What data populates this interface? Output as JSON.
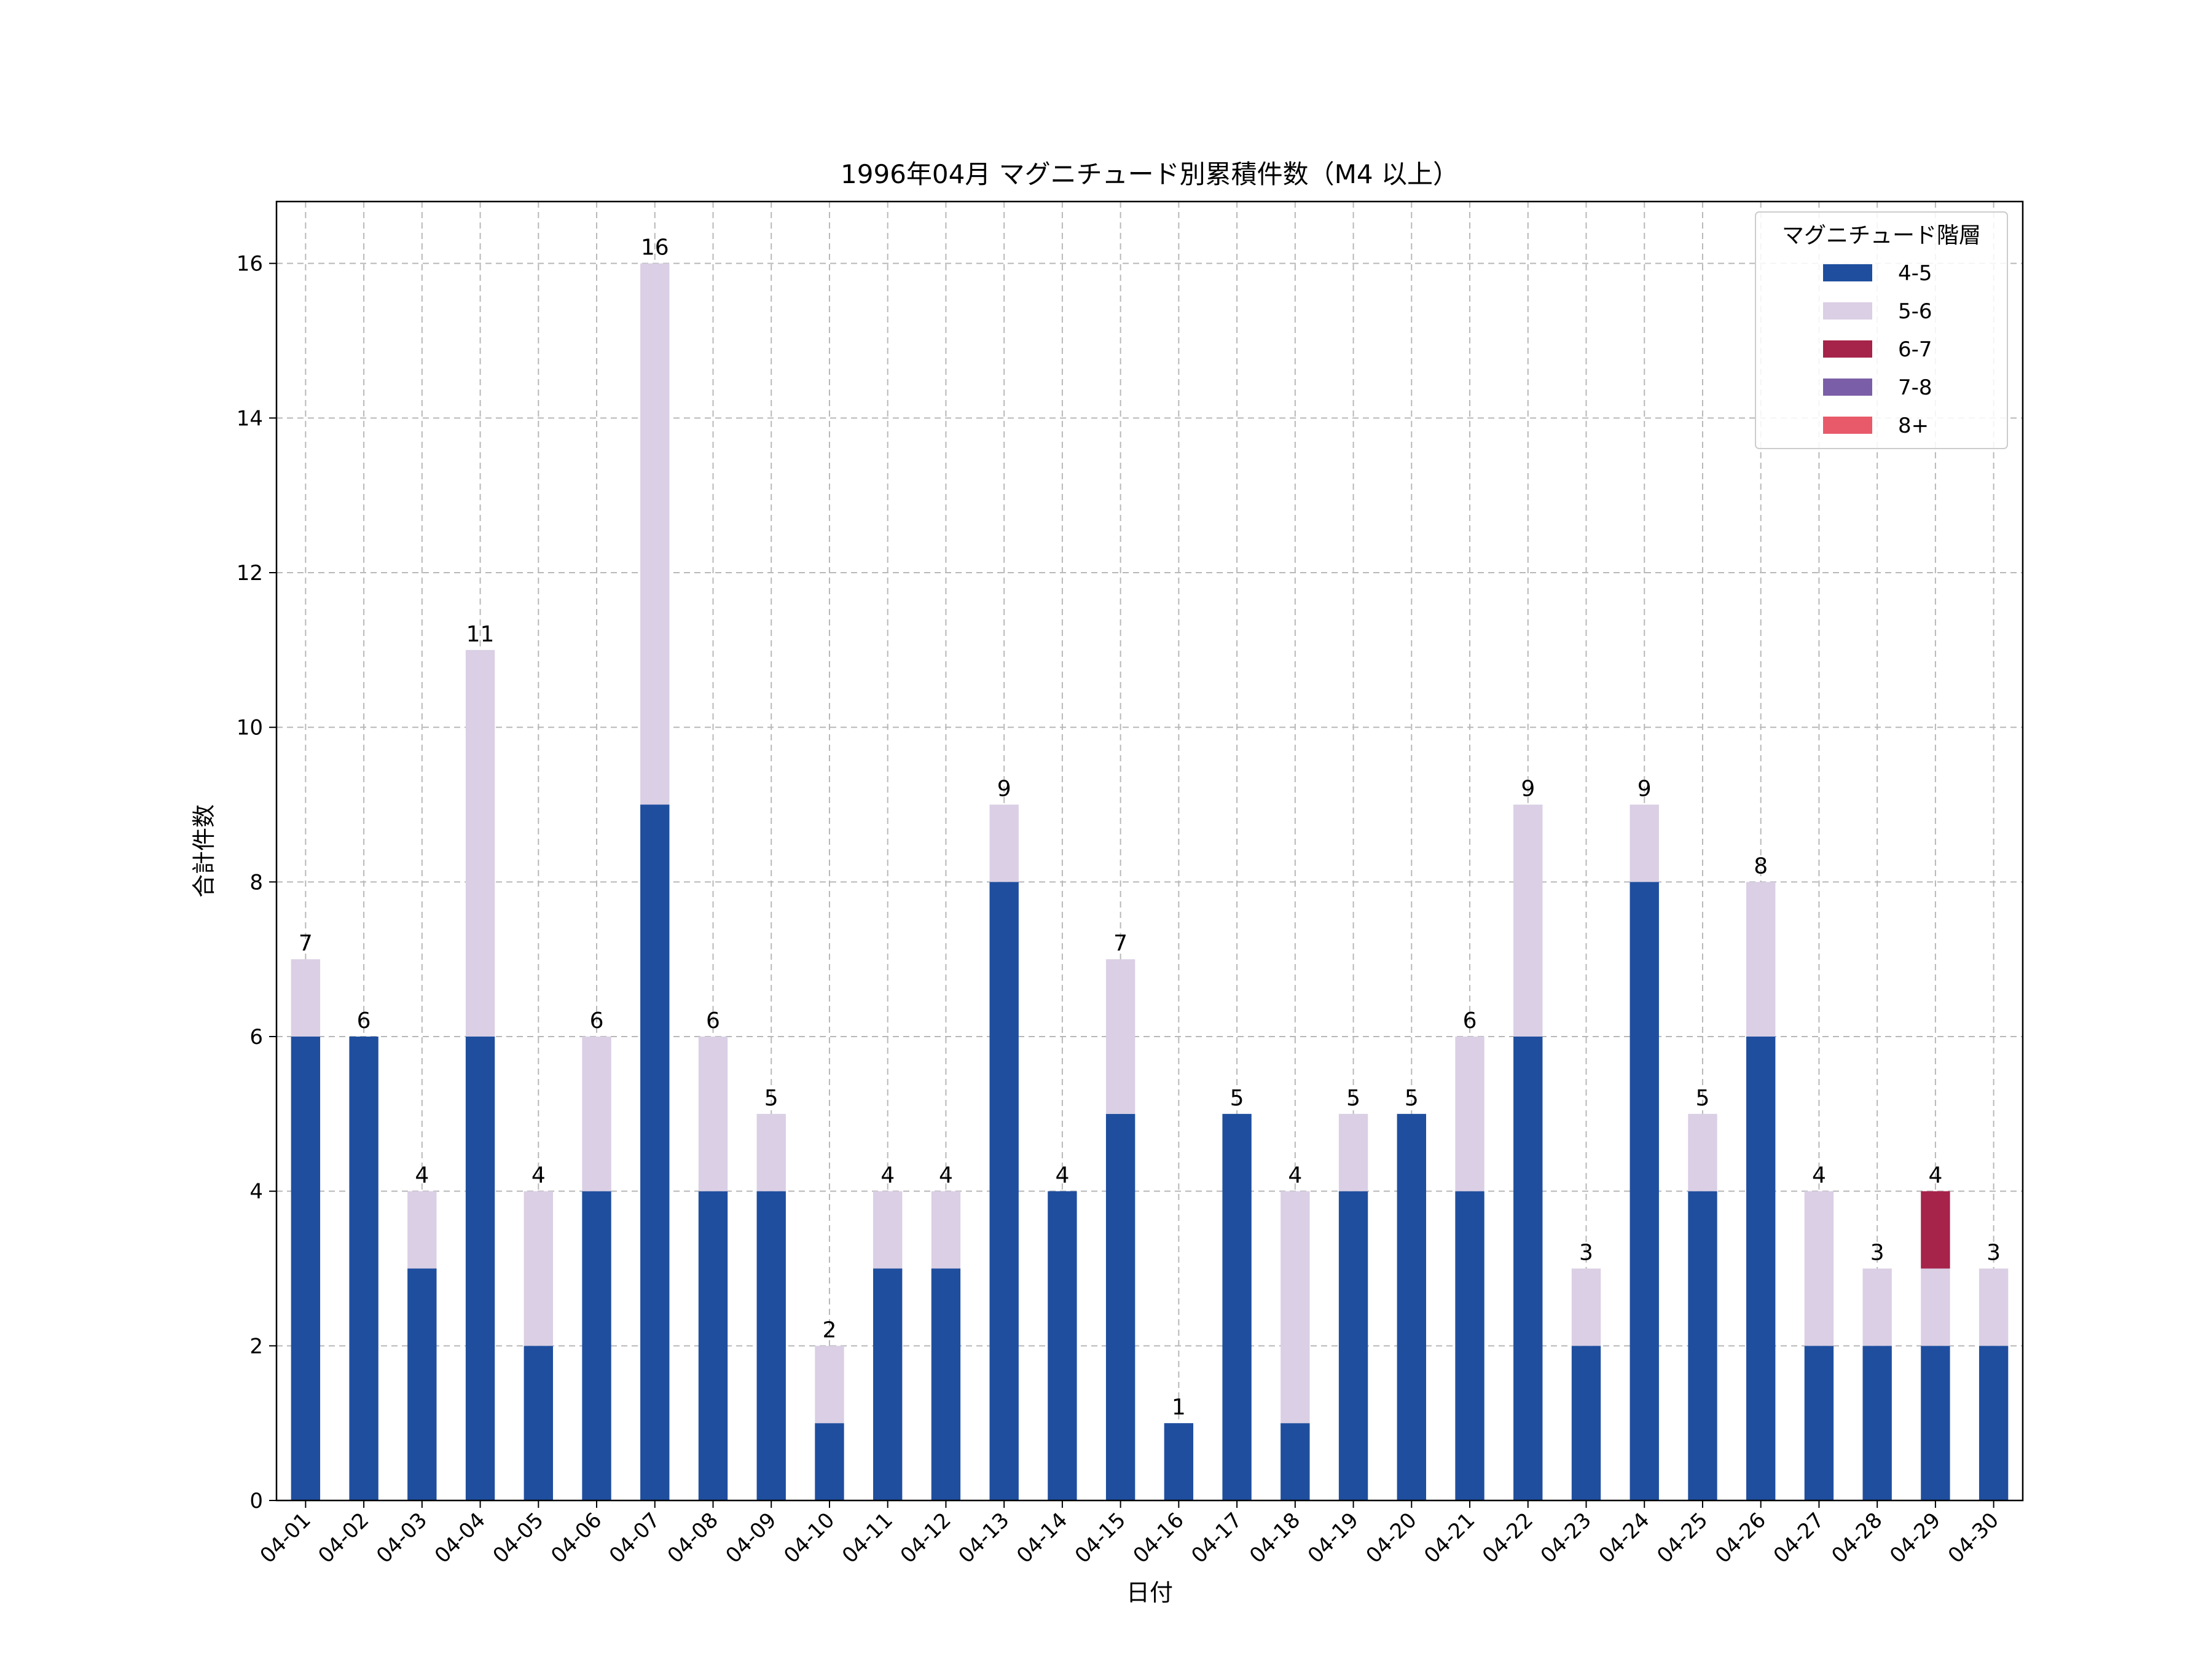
{
  "chart_data": {
    "type": "bar",
    "stacked": true,
    "title": "1996年04月 マグニチュード別累積件数（M4 以上）",
    "xlabel": "日付",
    "ylabel": "合計件数",
    "ylim": [
      0,
      16.8
    ],
    "yticks": [
      0,
      2,
      4,
      6,
      8,
      10,
      12,
      14,
      16
    ],
    "grid": true,
    "legend": {
      "title": "マグニチュード階層",
      "position": "top-right"
    },
    "categories": [
      "04-01",
      "04-02",
      "04-03",
      "04-04",
      "04-05",
      "04-06",
      "04-07",
      "04-08",
      "04-09",
      "04-10",
      "04-11",
      "04-12",
      "04-13",
      "04-14",
      "04-15",
      "04-16",
      "04-17",
      "04-18",
      "04-19",
      "04-20",
      "04-21",
      "04-22",
      "04-23",
      "04-24",
      "04-25",
      "04-26",
      "04-27",
      "04-28",
      "04-29",
      "04-30"
    ],
    "series": [
      {
        "name": "4-5",
        "color": "#1f4e9e",
        "values": [
          6,
          6,
          3,
          6,
          2,
          4,
          9,
          4,
          4,
          1,
          3,
          3,
          8,
          4,
          5,
          1,
          5,
          1,
          4,
          5,
          4,
          6,
          2,
          8,
          4,
          6,
          2,
          2,
          2,
          2
        ]
      },
      {
        "name": "5-6",
        "color": "#dacfe4",
        "values": [
          1,
          0,
          1,
          5,
          2,
          2,
          7,
          2,
          1,
          1,
          1,
          1,
          1,
          0,
          2,
          0,
          0,
          3,
          1,
          0,
          2,
          3,
          1,
          1,
          1,
          2,
          2,
          1,
          1,
          1
        ]
      },
      {
        "name": "6-7",
        "color": "#a6234a",
        "values": [
          0,
          0,
          0,
          0,
          0,
          0,
          0,
          0,
          0,
          0,
          0,
          0,
          0,
          0,
          0,
          0,
          0,
          0,
          0,
          0,
          0,
          0,
          0,
          0,
          0,
          0,
          0,
          0,
          1,
          0
        ]
      },
      {
        "name": "7-8",
        "color": "#7b5ea8",
        "values": [
          0,
          0,
          0,
          0,
          0,
          0,
          0,
          0,
          0,
          0,
          0,
          0,
          0,
          0,
          0,
          0,
          0,
          0,
          0,
          0,
          0,
          0,
          0,
          0,
          0,
          0,
          0,
          0,
          0,
          0
        ]
      },
      {
        "name": "8+",
        "color": "#e85a6a",
        "values": [
          0,
          0,
          0,
          0,
          0,
          0,
          0,
          0,
          0,
          0,
          0,
          0,
          0,
          0,
          0,
          0,
          0,
          0,
          0,
          0,
          0,
          0,
          0,
          0,
          0,
          0,
          0,
          0,
          0,
          0
        ]
      }
    ],
    "totals": [
      7,
      6,
      4,
      11,
      4,
      6,
      16,
      6,
      5,
      2,
      4,
      4,
      9,
      4,
      7,
      1,
      5,
      4,
      5,
      5,
      6,
      9,
      3,
      9,
      5,
      8,
      4,
      3,
      4,
      3
    ]
  }
}
